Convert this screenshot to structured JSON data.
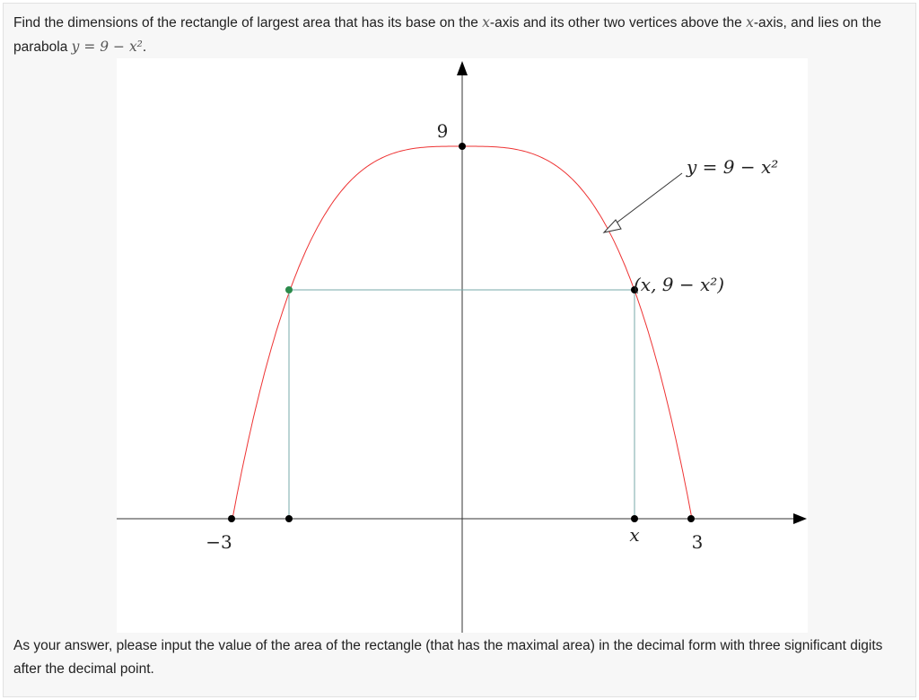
{
  "question": {
    "segments": [
      "Find the dimensions of the rectangle of largest area that has its base on the ",
      "x",
      "-axis and its other two vertices above the ",
      "x",
      "-axis, and lies on the parabola ",
      "y = 9 − x²",
      "."
    ]
  },
  "diagram": {
    "labels": {
      "y_top": "9",
      "curve": "y = 9 − x²",
      "point": "(x, 9 − x²)",
      "left": "−3",
      "x": "x",
      "right": "3"
    }
  },
  "instruction": "As your answer, please input the value of the area of the rectangle (that has the maximal area) in the decimal form with three significant digits after the decimal point."
}
